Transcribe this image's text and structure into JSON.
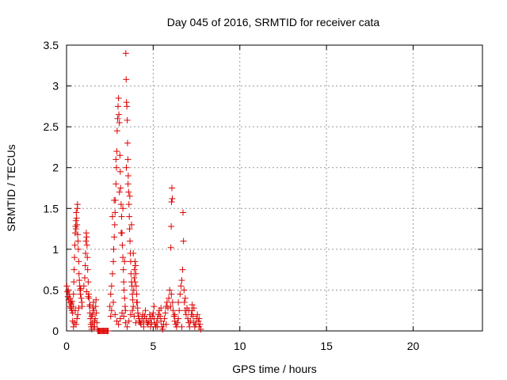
{
  "chart_data": {
    "type": "scatter",
    "title": "Day 045 of 2016, SRMTID for receiver cata",
    "xlabel": "GPS time / hours",
    "ylabel": "SRMTID / TECUs",
    "xlim": [
      0,
      24
    ],
    "ylim": [
      0,
      3.5
    ],
    "xticks": [
      0,
      5,
      10,
      15,
      20
    ],
    "xtick_labels": [
      "0",
      "5",
      "10",
      "15",
      "20"
    ],
    "yticks": [
      0,
      0.5,
      1,
      1.5,
      2,
      2.5,
      3,
      3.5
    ],
    "ytick_labels": [
      "0",
      "0.5",
      "1",
      "1.5",
      "2",
      "2.5",
      "3",
      "3.5"
    ],
    "grid": true,
    "marker": "+",
    "series": [
      {
        "name": "SRMTID",
        "color": "#dd0000",
        "points": [
          [
            0.02,
            0.55
          ],
          [
            0.05,
            0.48
          ],
          [
            0.08,
            0.42
          ],
          [
            0.1,
            0.5
          ],
          [
            0.12,
            0.38
          ],
          [
            0.15,
            0.45
          ],
          [
            0.18,
            0.3
          ],
          [
            0.2,
            0.4
          ],
          [
            0.22,
            0.35
          ],
          [
            0.25,
            0.28
          ],
          [
            0.28,
            0.33
          ],
          [
            0.3,
            0.25
          ],
          [
            0.32,
            0.36
          ],
          [
            0.35,
            0.22
          ],
          [
            0.38,
            0.3
          ],
          [
            0.4,
            0.45
          ],
          [
            0.42,
            0.6
          ],
          [
            0.44,
            0.75
          ],
          [
            0.46,
            0.9
          ],
          [
            0.48,
            1.05
          ],
          [
            0.5,
            1.2
          ],
          [
            0.52,
            1.28
          ],
          [
            0.54,
            1.35
          ],
          [
            0.55,
            1.25
          ],
          [
            0.56,
            1.45
          ],
          [
            0.58,
            1.38
          ],
          [
            0.6,
            1.3
          ],
          [
            0.62,
            1.5
          ],
          [
            0.63,
            1.55
          ],
          [
            0.64,
            1.18
          ],
          [
            0.66,
            1.1
          ],
          [
            0.68,
            1.0
          ],
          [
            0.7,
            0.85
          ],
          [
            0.72,
            0.7
          ],
          [
            0.74,
            0.62
          ],
          [
            0.76,
            0.55
          ],
          [
            0.78,
            0.5
          ],
          [
            0.8,
            0.45
          ],
          [
            0.82,
            0.52
          ],
          [
            0.85,
            0.4
          ],
          [
            0.88,
            0.35
          ],
          [
            0.9,
            0.3
          ],
          [
            0.5,
            0.25
          ],
          [
            0.45,
            0.1
          ],
          [
            0.55,
            0.08
          ],
          [
            0.6,
            0.15
          ],
          [
            0.65,
            0.2
          ],
          [
            0.7,
            0.28
          ],
          [
            0.35,
            0.12
          ],
          [
            0.4,
            0.05
          ],
          [
            1.0,
            0.55
          ],
          [
            1.05,
            0.65
          ],
          [
            1.08,
            0.8
          ],
          [
            1.1,
            0.95
          ],
          [
            1.12,
            1.1
          ],
          [
            1.14,
            1.2
          ],
          [
            1.16,
            1.15
          ],
          [
            1.18,
            1.05
          ],
          [
            1.2,
            0.9
          ],
          [
            1.22,
            0.75
          ],
          [
            1.25,
            0.6
          ],
          [
            1.28,
            0.45
          ],
          [
            1.3,
            0.4
          ],
          [
            1.32,
            0.3
          ],
          [
            1.35,
            0.22
          ],
          [
            1.38,
            0.15
          ],
          [
            1.4,
            0.08
          ],
          [
            1.42,
            0.05
          ],
          [
            1.45,
            0.02
          ],
          [
            1.48,
            0.1
          ],
          [
            1.5,
            0.2
          ],
          [
            1.52,
            0.28
          ],
          [
            1.55,
            0.35
          ],
          [
            1.58,
            0.25
          ],
          [
            1.6,
            0.12
          ],
          [
            1.62,
            0.05
          ],
          [
            1.65,
            0.15
          ],
          [
            1.68,
            0.3
          ],
          [
            1.7,
            0.38
          ],
          [
            1.72,
            0.22
          ],
          [
            1.75,
            0.1
          ],
          [
            1.78,
            0.02
          ],
          [
            1.8,
            0.0
          ],
          [
            1.85,
            0.0
          ],
          [
            1.9,
            0.0
          ],
          [
            1.95,
            0.0
          ],
          [
            2.0,
            0.0
          ],
          [
            2.05,
            0.0
          ],
          [
            2.1,
            0.0
          ],
          [
            2.15,
            0.0
          ],
          [
            2.2,
            0.0
          ],
          [
            2.25,
            0.0
          ],
          [
            2.3,
            0.0
          ],
          [
            2.35,
            0.0
          ],
          [
            2.4,
            0.0
          ],
          [
            1.55,
            0.05
          ],
          [
            1.45,
            0.18
          ],
          [
            1.35,
            0.32
          ],
          [
            1.25,
            0.42
          ],
          [
            1.15,
            0.48
          ],
          [
            2.5,
            0.3
          ],
          [
            2.55,
            0.45
          ],
          [
            2.6,
            0.55
          ],
          [
            2.65,
            0.7
          ],
          [
            2.7,
            0.85
          ],
          [
            2.72,
            1.0
          ],
          [
            2.75,
            1.15
          ],
          [
            2.78,
            1.3
          ],
          [
            2.8,
            1.45
          ],
          [
            2.82,
            1.6
          ],
          [
            2.85,
            1.8
          ],
          [
            2.88,
            2.0
          ],
          [
            2.9,
            2.2
          ],
          [
            2.92,
            2.45
          ],
          [
            2.95,
            2.6
          ],
          [
            2.97,
            2.75
          ],
          [
            3.0,
            2.85
          ],
          [
            3.02,
            2.65
          ],
          [
            3.05,
            2.55
          ],
          [
            3.08,
            2.15
          ],
          [
            3.1,
            1.95
          ],
          [
            3.12,
            1.75
          ],
          [
            3.15,
            1.55
          ],
          [
            3.18,
            1.4
          ],
          [
            3.2,
            1.2
          ],
          [
            3.22,
            1.05
          ],
          [
            3.25,
            0.9
          ],
          [
            3.28,
            0.75
          ],
          [
            3.3,
            0.6
          ],
          [
            3.32,
            0.5
          ],
          [
            3.35,
            0.4
          ],
          [
            3.38,
            0.3
          ],
          [
            3.4,
            0.25
          ],
          [
            3.42,
            3.4
          ],
          [
            3.44,
            3.08
          ],
          [
            3.46,
            2.8
          ],
          [
            3.48,
            2.75
          ],
          [
            3.5,
            2.58
          ],
          [
            3.52,
            2.3
          ],
          [
            3.54,
            2.1
          ],
          [
            3.56,
            1.9
          ],
          [
            3.58,
            1.7
          ],
          [
            3.6,
            1.55
          ],
          [
            3.62,
            1.4
          ],
          [
            3.64,
            1.25
          ],
          [
            3.66,
            1.1
          ],
          [
            3.68,
            0.95
          ],
          [
            3.7,
            0.85
          ],
          [
            3.72,
            0.7
          ],
          [
            3.75,
            0.6
          ],
          [
            3.78,
            0.55
          ],
          [
            3.8,
            0.45
          ],
          [
            3.82,
            0.38
          ],
          [
            3.85,
            0.3
          ],
          [
            3.88,
            0.5
          ],
          [
            3.9,
            0.65
          ],
          [
            3.92,
            0.75
          ],
          [
            3.95,
            0.85
          ],
          [
            3.98,
            0.8
          ],
          [
            4.0,
            0.7
          ],
          [
            4.02,
            0.55
          ],
          [
            4.05,
            0.45
          ],
          [
            4.08,
            0.35
          ],
          [
            4.1,
            0.28
          ],
          [
            4.12,
            0.22
          ],
          [
            4.15,
            0.18
          ],
          [
            4.18,
            0.15
          ],
          [
            4.2,
            0.12
          ],
          [
            4.25,
            0.1
          ],
          [
            4.3,
            0.08
          ],
          [
            2.55,
            0.18
          ],
          [
            2.6,
            0.25
          ],
          [
            2.7,
            0.35
          ],
          [
            2.8,
            0.2
          ],
          [
            2.9,
            0.12
          ],
          [
            3.0,
            0.08
          ],
          [
            3.1,
            0.15
          ],
          [
            3.2,
            0.22
          ],
          [
            3.3,
            0.18
          ],
          [
            3.4,
            0.1
          ],
          [
            3.5,
            0.05
          ],
          [
            3.6,
            0.12
          ],
          [
            3.7,
            0.2
          ],
          [
            3.8,
            0.25
          ],
          [
            3.9,
            0.18
          ],
          [
            4.0,
            0.1
          ],
          [
            2.65,
            1.4
          ],
          [
            2.75,
            1.6
          ],
          [
            2.85,
            2.1
          ],
          [
            3.05,
            1.7
          ],
          [
            3.15,
            1.2
          ],
          [
            3.25,
            1.5
          ],
          [
            3.35,
            0.85
          ],
          [
            3.45,
            2.0
          ],
          [
            3.55,
            1.8
          ],
          [
            3.65,
            1.65
          ],
          [
            3.75,
            1.3
          ],
          [
            3.85,
            0.95
          ],
          [
            3.95,
            0.6
          ],
          [
            4.05,
            0.35
          ],
          [
            4.35,
            0.15
          ],
          [
            4.4,
            0.2
          ],
          [
            4.45,
            0.12
          ],
          [
            4.5,
            0.18
          ],
          [
            4.55,
            0.25
          ],
          [
            4.6,
            0.15
          ],
          [
            4.65,
            0.1
          ],
          [
            4.7,
            0.08
          ],
          [
            4.75,
            0.12
          ],
          [
            4.8,
            0.2
          ],
          [
            4.85,
            0.15
          ],
          [
            4.9,
            0.1
          ],
          [
            4.95,
            0.18
          ],
          [
            5.0,
            0.22
          ],
          [
            5.05,
            0.15
          ],
          [
            5.1,
            0.08
          ],
          [
            5.15,
            0.05
          ],
          [
            5.2,
            0.1
          ],
          [
            5.25,
            0.15
          ],
          [
            5.3,
            0.2
          ],
          [
            5.35,
            0.25
          ],
          [
            5.4,
            0.18
          ],
          [
            5.45,
            0.12
          ],
          [
            5.5,
            0.05
          ],
          [
            5.55,
            0.02
          ],
          [
            5.6,
            0.08
          ],
          [
            5.65,
            0.15
          ],
          [
            5.7,
            0.22
          ],
          [
            5.75,
            0.3
          ],
          [
            5.8,
            0.35
          ],
          [
            5.85,
            0.28
          ],
          [
            5.9,
            0.4
          ],
          [
            5.95,
            0.5
          ],
          [
            6.0,
            0.3
          ],
          [
            6.02,
            1.02
          ],
          [
            6.04,
            1.28
          ],
          [
            6.06,
            1.58
          ],
          [
            6.08,
            1.75
          ],
          [
            6.1,
            1.62
          ],
          [
            6.12,
            0.35
          ],
          [
            6.15,
            0.25
          ],
          [
            6.2,
            0.18
          ],
          [
            6.25,
            0.12
          ],
          [
            6.3,
            0.08
          ],
          [
            6.35,
            0.05
          ],
          [
            6.4,
            0.1
          ],
          [
            6.45,
            0.15
          ],
          [
            6.5,
            0.25
          ],
          [
            6.55,
            0.45
          ],
          [
            6.6,
            0.55
          ],
          [
            6.65,
            0.62
          ],
          [
            6.7,
            0.75
          ],
          [
            6.72,
            1.45
          ],
          [
            6.75,
            1.1
          ],
          [
            6.78,
            0.5
          ],
          [
            6.8,
            0.35
          ],
          [
            6.85,
            0.25
          ],
          [
            6.9,
            0.2
          ],
          [
            6.95,
            0.28
          ],
          [
            7.0,
            0.15
          ],
          [
            7.05,
            0.1
          ],
          [
            7.1,
            0.05
          ],
          [
            7.15,
            0.12
          ],
          [
            7.2,
            0.2
          ],
          [
            7.25,
            0.25
          ],
          [
            7.3,
            0.18
          ],
          [
            7.35,
            0.1
          ],
          [
            7.4,
            0.05
          ],
          [
            7.45,
            0.08
          ],
          [
            7.5,
            0.15
          ],
          [
            7.55,
            0.2
          ],
          [
            7.6,
            0.12
          ],
          [
            7.65,
            0.05
          ],
          [
            7.7,
            0.08
          ],
          [
            7.75,
            0.02
          ],
          [
            4.45,
            0.05
          ],
          [
            4.85,
            0.05
          ],
          [
            5.25,
            0.05
          ],
          [
            5.75,
            0.08
          ],
          [
            6.25,
            0.2
          ],
          [
            6.65,
            0.05
          ],
          [
            7.05,
            0.25
          ],
          [
            7.35,
            0.28
          ],
          [
            7.65,
            0.15
          ],
          [
            5.05,
            0.3
          ],
          [
            5.45,
            0.28
          ],
          [
            6.05,
            0.45
          ],
          [
            6.45,
            0.35
          ],
          [
            6.85,
            0.4
          ],
          [
            7.25,
            0.32
          ]
        ]
      }
    ]
  }
}
